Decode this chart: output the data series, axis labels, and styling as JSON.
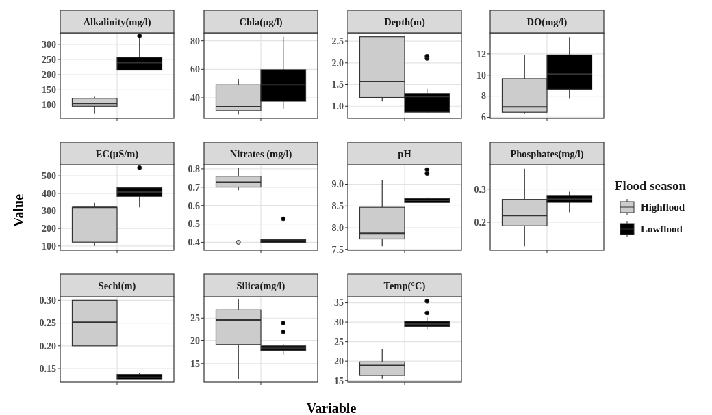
{
  "chart_data": [
    {
      "type": "box",
      "title": "Alkalinity(mg/l)",
      "categories": [
        null
      ],
      "ylim": [
        56,
        338
      ],
      "yticks": [
        100,
        150,
        200,
        250,
        300
      ],
      "grid": true,
      "series": [
        {
          "color": "#cccccc",
          "boxes": [
            {
              "low": 70,
              "q1": 96,
              "median": 105,
              "q3": 122,
              "high": 127
            }
          ]
        },
        {
          "color": "#000000",
          "boxes": [
            {
              "low": 215,
              "q1": 215,
              "median": 240,
              "q3": 257,
              "high": 320,
              "outliers": [
                328
              ]
            }
          ]
        }
      ]
    },
    {
      "type": "box",
      "title": "Chla(µg/l)",
      "categories": [
        null
      ],
      "ylim": [
        25.6,
        85.6
      ],
      "yticks": [
        40,
        60,
        80
      ],
      "grid": true,
      "series": [
        {
          "color": "#cccccc",
          "boxes": [
            {
              "low": 28.4,
              "q1": 30.9,
              "median": 33.8,
              "q3": 49,
              "high": 53
            }
          ]
        },
        {
          "color": "#000000",
          "boxes": [
            {
              "low": 32.5,
              "q1": 37.6,
              "median": 49,
              "q3": 59.7,
              "high": 82.9
            }
          ]
        }
      ]
    },
    {
      "type": "box",
      "title": "Depth(m)",
      "categories": [
        null
      ],
      "ylim": [
        0.72,
        2.69
      ],
      "yticks": [
        {
          "value": 1,
          "label": "1.0"
        },
        1.5,
        {
          "value": 2,
          "label": "2.0"
        },
        2.5
      ],
      "grid": true,
      "series": [
        {
          "color": "#cccccc",
          "boxes": [
            {
              "low": 1.11,
              "q1": 1.2,
              "median": 1.57,
              "q3": 2.6,
              "high": 2.6
            }
          ]
        },
        {
          "color": "#000000",
          "boxes": [
            {
              "low": 0.83,
              "q1": 0.86,
              "median": 1.22,
              "q3": 1.29,
              "high": 1.4,
              "outliers": [
                2.1,
                2.15
              ]
            }
          ]
        }
      ]
    },
    {
      "type": "box",
      "title": "DO(mg/l)",
      "categories": [
        null
      ],
      "ylim": [
        5.9,
        14
      ],
      "yticks": [
        6,
        8,
        10,
        12
      ],
      "grid": true,
      "series": [
        {
          "color": "#cccccc",
          "boxes": [
            {
              "low": 6.3,
              "q1": 6.47,
              "median": 6.99,
              "q3": 9.66,
              "high": 11.9
            }
          ]
        },
        {
          "color": "#000000",
          "boxes": [
            {
              "low": 7.75,
              "q1": 8.66,
              "median": 10.1,
              "q3": 11.9,
              "high": 13.6
            }
          ]
        }
      ]
    },
    {
      "type": "box",
      "title": "EC(µS/m)",
      "ylabel": "Value",
      "categories": [
        null
      ],
      "ylim": [
        76,
        563
      ],
      "yticks": [
        100,
        200,
        300,
        400,
        500
      ],
      "grid": true,
      "series": [
        {
          "color": "#cccccc",
          "boxes": [
            {
              "low": 100,
              "q1": 122,
              "median": 320,
              "q3": 320,
              "high": 346
            }
          ]
        },
        {
          "color": "#000000",
          "boxes": [
            {
              "low": 320,
              "q1": 383,
              "median": 407,
              "q3": 432,
              "high": 432,
              "outliers": [
                546
              ]
            }
          ]
        }
      ]
    },
    {
      "type": "box",
      "title": "Nitrates (mg/l)",
      "categories": [
        null
      ],
      "ylim": [
        0.357,
        0.822
      ],
      "yticks": [
        0.4,
        0.5,
        0.6,
        0.7,
        0.8
      ],
      "grid": true,
      "series": [
        {
          "color": "#cccccc",
          "boxes": [
            {
              "low": 0.683,
              "q1": 0.701,
              "median": 0.727,
              "q3": 0.76,
              "high": 0.804,
              "outliers": [
                0.4
              ]
            }
          ]
        },
        {
          "color": "#000000",
          "boxes": [
            {
              "low": 0.4,
              "q1": 0.4,
              "median": 0.408,
              "q3": 0.415,
              "high": 0.419,
              "outliers": [
                0.528
              ]
            }
          ]
        }
      ]
    },
    {
      "type": "box",
      "title": "pH",
      "categories": [
        null
      ],
      "ylim": [
        7.48,
        9.45
      ],
      "yticks": [
        7.5,
        {
          "value": 8,
          "label": "8.0"
        },
        8.5,
        {
          "value": 9,
          "label": "9.0"
        }
      ],
      "grid": true,
      "series": [
        {
          "color": "#cccccc",
          "boxes": [
            {
              "low": 7.57,
              "q1": 7.74,
              "median": 7.87,
              "q3": 8.47,
              "high": 9.09
            }
          ]
        },
        {
          "color": "#000000",
          "boxes": [
            {
              "low": 8.58,
              "q1": 8.58,
              "median": 8.63,
              "q3": 8.67,
              "high": 8.7,
              "outliers": [
                9.25,
                9.34
              ]
            }
          ]
        }
      ]
    },
    {
      "type": "box",
      "title": "Phosphates(mg/l)",
      "legend": "right",
      "legend_title": "Flood season",
      "categories": [
        null
      ],
      "ylim": [
        0.115,
        0.374
      ],
      "yticks": [
        0.2,
        0.3
      ],
      "grid": true,
      "series": [
        {
          "name": "Highflood",
          "color": "#cccccc",
          "boxes": [
            {
              "low": 0.127,
              "q1": 0.189,
              "median": 0.22,
              "q3": 0.269,
              "high": 0.362
            }
          ]
        },
        {
          "name": "Lowflood",
          "color": "#000000",
          "boxes": [
            {
              "low": 0.23,
              "q1": 0.26,
              "median": 0.27,
              "q3": 0.281,
              "high": 0.292
            }
          ]
        }
      ]
    },
    {
      "type": "box",
      "title": "Sechi(m)",
      "categories": [
        null
      ],
      "ylim": [
        0.12,
        0.308
      ],
      "yticks": [
        0.15,
        {
          "value": 0.2,
          "label": "0.20"
        },
        0.25,
        {
          "value": 0.3,
          "label": "0.30"
        }
      ],
      "grid": true,
      "series": [
        {
          "color": "#cccccc",
          "boxes": [
            {
              "low": 0.2,
              "q1": 0.2,
              "median": 0.252,
              "q3": 0.3,
              "high": 0.3
            }
          ]
        },
        {
          "color": "#000000",
          "boxes": [
            {
              "low": 0.126,
              "q1": 0.126,
              "median": 0.131,
              "q3": 0.137,
              "high": 0.14
            }
          ]
        }
      ]
    },
    {
      "type": "box",
      "title": "Silica(mg/l)",
      "xlabel": "Variable",
      "categories": [
        null
      ],
      "ylim": [
        10.9,
        29.7
      ],
      "yticks": [
        15,
        20,
        25
      ],
      "grid": true,
      "series": [
        {
          "color": "#cccccc",
          "boxes": [
            {
              "low": 11.5,
              "q1": 19.2,
              "median": 24.6,
              "q3": 26.8,
              "high": 29.1
            }
          ]
        },
        {
          "color": "#000000",
          "boxes": [
            {
              "low": 17,
              "q1": 17.9,
              "median": 18.4,
              "q3": 18.9,
              "high": 19.3,
              "outliers": [
                22,
                23.9
              ]
            }
          ]
        }
      ]
    },
    {
      "type": "box",
      "title": "Temp(°C)",
      "categories": [
        null
      ],
      "ylim": [
        14.6,
        36.5
      ],
      "yticks": [
        15,
        20,
        25,
        30,
        35
      ],
      "grid": true,
      "series": [
        {
          "color": "#cccccc",
          "boxes": [
            {
              "low": 15.5,
              "q1": 16.35,
              "median": 18.9,
              "q3": 19.8,
              "high": 23
            }
          ]
        },
        {
          "color": "#000000",
          "boxes": [
            {
              "low": 28.2,
              "q1": 28.9,
              "median": 29.5,
              "q3": 30.2,
              "high": 31.2,
              "outliers": [
                32.3,
                35.4
              ]
            }
          ]
        }
      ]
    }
  ]
}
